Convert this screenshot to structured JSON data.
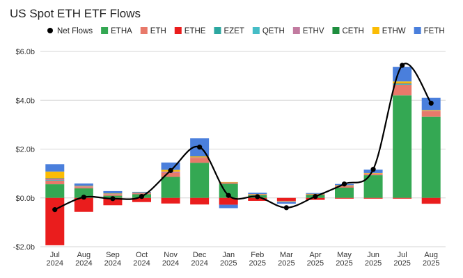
{
  "chart_data": {
    "type": "bar",
    "stacked": true,
    "title": "US Spot ETH ETF Flows",
    "categories": [
      "Jul 2024",
      "Aug 2024",
      "Sep 2024",
      "Oct 2024",
      "Nov 2024",
      "Dec 2024",
      "Jan 2025",
      "Feb 2025",
      "Mar 2025",
      "Apr 2025",
      "May 2025",
      "Jun 2025",
      "Jul 2025",
      "Aug 2025"
    ],
    "category_lines": [
      [
        "Jul",
        "2024"
      ],
      [
        "Aug",
        "2024"
      ],
      [
        "Sep",
        "2024"
      ],
      [
        "Oct",
        "2024"
      ],
      [
        "Nov",
        "2024"
      ],
      [
        "Dec",
        "2024"
      ],
      [
        "Jan",
        "2025"
      ],
      [
        "Feb",
        "2025"
      ],
      [
        "Mar",
        "2025"
      ],
      [
        "Apr",
        "2025"
      ],
      [
        "May",
        "2025"
      ],
      [
        "Jun",
        "2025"
      ],
      [
        "Jul",
        "2025"
      ],
      [
        "Aug",
        "2025"
      ]
    ],
    "y_unit": "billion USD",
    "ylim": [
      -2.0,
      6.0
    ],
    "yticks": [
      -2,
      0,
      2,
      4,
      6
    ],
    "ytick_labels": [
      "-$2.0b",
      "$0.0b",
      "$2.0b",
      "$4.0b",
      "$6.0b"
    ],
    "grid": true,
    "legend_position": "top",
    "line_series": {
      "name": "Net Flows",
      "color": "#000000",
      "values": [
        -0.48,
        0.03,
        -0.03,
        0.06,
        1.12,
        2.08,
        0.1,
        0.05,
        -0.4,
        0.06,
        0.57,
        1.17,
        5.43,
        3.88
      ]
    },
    "series": [
      {
        "name": "ETHA",
        "color": "#34a853",
        "values": [
          0.56,
          0.39,
          0.09,
          0.15,
          0.86,
          1.44,
          0.58,
          0.11,
          0.0,
          0.12,
          0.42,
          0.93,
          4.2,
          3.33
        ]
      },
      {
        "name": "ETH",
        "color": "#e8796a",
        "values": [
          0.15,
          0.05,
          0.05,
          0.04,
          0.16,
          0.2,
          0.04,
          0.03,
          0.0,
          0.03,
          0.06,
          0.05,
          0.44,
          0.22
        ]
      },
      {
        "name": "ETHE",
        "color": "#ea1d1d",
        "values": [
          -1.94,
          -0.57,
          -0.3,
          -0.17,
          -0.23,
          -0.27,
          -0.28,
          -0.12,
          -0.12,
          -0.08,
          -0.03,
          -0.03,
          -0.03,
          -0.24
        ]
      },
      {
        "name": "EZET",
        "color": "#2ca7a0",
        "values": [
          0.01,
          0.0,
          0.0,
          0.0,
          0.0,
          0.0,
          0.0,
          0.0,
          0.0,
          0.0,
          0.0,
          0.0,
          0.01,
          0.0
        ]
      },
      {
        "name": "QETH",
        "color": "#46bdc6",
        "values": [
          0.01,
          0.0,
          0.0,
          0.0,
          0.0,
          0.0,
          0.0,
          0.0,
          0.0,
          0.0,
          0.0,
          0.0,
          0.01,
          0.0
        ]
      },
      {
        "name": "ETHV",
        "color": "#c27ba0",
        "values": [
          0.07,
          0.03,
          0.02,
          0.01,
          0.06,
          0.02,
          0.02,
          0.01,
          -0.02,
          0.01,
          0.02,
          0.02,
          0.03,
          0.02
        ]
      },
      {
        "name": "CETH",
        "color": "#1e8e3e",
        "values": [
          0.01,
          0.0,
          0.0,
          0.0,
          0.0,
          0.0,
          0.0,
          0.0,
          0.0,
          0.0,
          0.0,
          0.0,
          0.01,
          0.0
        ]
      },
      {
        "name": "ETHW",
        "color": "#fbbc04",
        "values": [
          0.27,
          0.02,
          0.02,
          0.01,
          0.07,
          0.04,
          0.01,
          0.01,
          -0.02,
          0.01,
          0.02,
          0.02,
          0.07,
          0.03
        ]
      },
      {
        "name": "FETH",
        "color": "#4a7fdc",
        "values": [
          0.3,
          0.1,
          0.1,
          0.04,
          0.3,
          0.74,
          -0.14,
          0.05,
          -0.08,
          0.03,
          0.05,
          0.14,
          0.6,
          0.5
        ]
      }
    ]
  }
}
